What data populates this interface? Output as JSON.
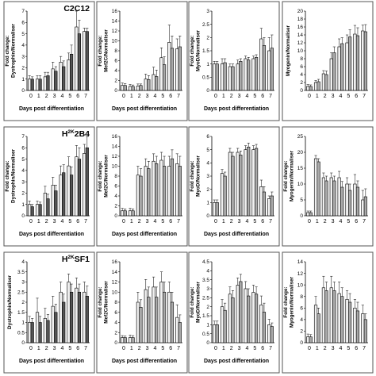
{
  "chart_data": [
    {
      "row": 0,
      "col": 0,
      "type": "bar",
      "title": "C2C12",
      "ylabel": "Fold change: Dystrophin/Normaliser",
      "xlabel": "Days post differentiation",
      "ylim": [
        0,
        7
      ],
      "yticks": [
        0,
        1,
        2,
        3,
        4,
        5,
        6,
        7
      ],
      "categories": [
        "0",
        "1",
        "2",
        "3",
        "4",
        "5",
        "6",
        "7"
      ],
      "series": [
        {
          "values": [
            1.0,
            1.0,
            1.2,
            1.9,
            2.5,
            2.7,
            5.6,
            5.2
          ],
          "errors": [
            0.3,
            0.3,
            0.4,
            0.6,
            0.5,
            0.6,
            1.4,
            0.3
          ],
          "fill": "#f0f0f0"
        },
        {
          "values": [
            1.0,
            1.0,
            1.3,
            1.7,
            2.1,
            3.2,
            5.0,
            5.2
          ],
          "errors": [
            0.2,
            0.3,
            0.3,
            0.4,
            0.5,
            0.8,
            1.2,
            0.3
          ],
          "fill": "#555555"
        }
      ]
    },
    {
      "row": 0,
      "col": 1,
      "type": "bar",
      "title": "",
      "ylabel": "Fold change: Mef2C/Normaliser",
      "xlabel": "Days post differentiation",
      "ylim": [
        0,
        16
      ],
      "yticks": [
        0,
        2,
        4,
        6,
        8,
        10,
        12,
        14,
        16
      ],
      "categories": [
        "0",
        "1",
        "2",
        "3",
        "4",
        "5",
        "6",
        "7"
      ],
      "series": [
        {
          "values": [
            1.0,
            0.8,
            0.9,
            2.3,
            3.2,
            6.6,
            9.7,
            8.4
          ],
          "errors": [
            0.5,
            0.4,
            0.4,
            1.0,
            1.5,
            2.0,
            3.5,
            2.0
          ],
          "fill": "#f0f0f0"
        },
        {
          "values": [
            1.0,
            0.8,
            1.0,
            2.2,
            2.8,
            5.2,
            8.5,
            8.8
          ],
          "errors": [
            0.4,
            0.3,
            0.3,
            0.8,
            1.3,
            1.6,
            2.5,
            2.2
          ],
          "fill": "#aaaaaa"
        }
      ]
    },
    {
      "row": 0,
      "col": 2,
      "type": "bar",
      "title": "",
      "ylabel": "Fold change: MyoD/Normaliser",
      "xlabel": "Days post differentiation",
      "ylim": [
        0,
        3
      ],
      "yticks": [
        0,
        0.5,
        1,
        1.5,
        2,
        2.5,
        3
      ],
      "categories": [
        "0",
        "1",
        "2",
        "3",
        "4",
        "5",
        "6",
        "7"
      ],
      "series": [
        {
          "values": [
            1.0,
            1.0,
            0.9,
            1.0,
            1.2,
            1.2,
            1.95,
            1.5
          ],
          "errors": [
            0.1,
            0.2,
            0.1,
            0.15,
            0.1,
            0.1,
            0.4,
            0.5
          ],
          "fill": "#f0f0f0"
        },
        {
          "values": [
            1.0,
            1.05,
            0.9,
            1.1,
            1.15,
            1.25,
            1.7,
            1.6
          ],
          "errors": [
            0.1,
            0.15,
            0.1,
            0.1,
            0.1,
            0.1,
            0.3,
            0.5
          ],
          "fill": "#aaaaaa"
        }
      ]
    },
    {
      "row": 0,
      "col": 3,
      "type": "bar",
      "title": "",
      "ylabel": "Myogenin/Normaliser",
      "xlabel": "",
      "ylim": [
        0,
        20
      ],
      "yticks": [
        0,
        2,
        4,
        6,
        8,
        10,
        12,
        14,
        16,
        18,
        20
      ],
      "categories": [
        "0",
        "1",
        "2",
        "3",
        "4",
        "5",
        "6",
        "7"
      ],
      "series": [
        {
          "values": [
            1.0,
            2.0,
            4.2,
            8.0,
            11.0,
            12.0,
            14.2,
            15.0
          ],
          "errors": [
            0.5,
            0.5,
            0.8,
            1.5,
            2.0,
            2.0,
            2.2,
            1.5
          ],
          "fill": "#f0f0f0"
        },
        {
          "values": [
            1.0,
            2.2,
            4.0,
            9.5,
            11.8,
            13.5,
            13.8,
            14.8
          ],
          "errors": [
            0.4,
            0.6,
            0.9,
            1.5,
            1.5,
            1.8,
            2.0,
            1.8
          ],
          "fill": "#aaaaaa"
        }
      ]
    },
    {
      "row": 1,
      "col": 0,
      "type": "bar",
      "title": "H2K2B4",
      "title_main": "H",
      "title_sup": "2K",
      "title_rest": "2B4",
      "ylabel": "Fold change: Dystrophin/Normaliser",
      "xlabel": "Days post differentiation",
      "ylim": [
        0,
        7
      ],
      "yticks": [
        0,
        1,
        2,
        3,
        4,
        5,
        6,
        7
      ],
      "categories": [
        "0",
        "1",
        "2",
        "3",
        "4",
        "5",
        "6",
        "7"
      ],
      "series": [
        {
          "values": [
            1.0,
            1.0,
            2.0,
            2.7,
            3.6,
            4.4,
            5.2,
            5.5
          ],
          "errors": [
            0.3,
            0.3,
            0.6,
            0.7,
            0.8,
            0.8,
            1.0,
            0.8
          ],
          "fill": "#f0f0f0"
        },
        {
          "values": [
            0.8,
            1.0,
            1.5,
            2.2,
            3.8,
            3.6,
            5.0,
            6.0
          ],
          "errors": [
            0.2,
            0.2,
            0.4,
            0.5,
            0.7,
            0.7,
            1.0,
            1.2
          ],
          "fill": "#555555"
        }
      ]
    },
    {
      "row": 1,
      "col": 1,
      "type": "bar",
      "title": "",
      "ylabel": "Fold change: Mef2C/Normaliser",
      "xlabel": "Days post differentiation",
      "ylim": [
        0,
        16
      ],
      "yticks": [
        0,
        2,
        4,
        6,
        8,
        10,
        12,
        14,
        16
      ],
      "categories": [
        "0",
        "1",
        "2",
        "3",
        "4",
        "5",
        "6",
        "7"
      ],
      "series": [
        {
          "values": [
            1.0,
            1.0,
            8.2,
            10.0,
            11.0,
            11.2,
            10.0,
            10.5
          ],
          "errors": [
            0.5,
            0.5,
            1.8,
            1.5,
            1.5,
            1.6,
            2.0,
            2.0
          ],
          "fill": "#f0f0f0"
        },
        {
          "values": [
            1.0,
            1.0,
            8.0,
            9.5,
            10.5,
            10.0,
            11.5,
            10.0
          ],
          "errors": [
            0.4,
            0.4,
            1.5,
            1.5,
            1.5,
            2.0,
            1.8,
            2.0
          ],
          "fill": "#aaaaaa"
        }
      ]
    },
    {
      "row": 1,
      "col": 2,
      "type": "bar",
      "title": "",
      "ylabel": "Fold change: MyoD/Normaliser",
      "xlabel": "Days post differentiation",
      "ylim": [
        0,
        6
      ],
      "yticks": [
        0,
        1,
        2,
        3,
        4,
        5,
        6
      ],
      "categories": [
        "0",
        "1",
        "2",
        "3",
        "4",
        "5",
        "6",
        "7"
      ],
      "series": [
        {
          "values": [
            1.0,
            3.2,
            4.8,
            4.8,
            5.0,
            5.0,
            2.2,
            1.3
          ],
          "errors": [
            0.2,
            0.3,
            0.3,
            0.3,
            0.3,
            0.3,
            0.5,
            0.2
          ],
          "fill": "#f0f0f0"
        },
        {
          "values": [
            1.0,
            3.0,
            4.5,
            4.6,
            5.2,
            5.1,
            1.8,
            1.5
          ],
          "errors": [
            0.2,
            0.3,
            0.3,
            0.3,
            0.3,
            0.3,
            0.4,
            0.3
          ],
          "fill": "#aaaaaa"
        }
      ]
    },
    {
      "row": 1,
      "col": 3,
      "type": "bar",
      "title": "",
      "ylabel": "Fold change: Myogenin/Normaliser",
      "xlabel": "",
      "ylim": [
        0,
        25
      ],
      "yticks": [
        0,
        5,
        10,
        15,
        20,
        25
      ],
      "categories": [
        "0",
        "1",
        "2",
        "3",
        "4",
        "5",
        "6",
        "7"
      ],
      "series": [
        {
          "values": [
            1.0,
            18.0,
            12.0,
            12.0,
            12.0,
            10.0,
            10.0,
            5.0
          ],
          "errors": [
            0.5,
            1.0,
            1.5,
            1.5,
            2.0,
            2.0,
            3.0,
            3.0
          ],
          "fill": "#f0f0f0"
        },
        {
          "values": [
            1.0,
            17.0,
            11.0,
            11.0,
            9.0,
            8.0,
            9.0,
            6.0
          ],
          "errors": [
            0.5,
            1.0,
            1.5,
            1.5,
            1.8,
            2.0,
            2.0,
            2.5
          ],
          "fill": "#aaaaaa"
        }
      ]
    },
    {
      "row": 2,
      "col": 0,
      "type": "bar",
      "title": "H2KSF1",
      "title_main": "H",
      "title_sup": "2K",
      "title_rest": "SF1",
      "ylabel": "Dystrophin/Normaliser",
      "xlabel": "Days post differentiation",
      "ylim": [
        0,
        4
      ],
      "yticks": [
        0,
        0.5,
        1,
        1.5,
        2,
        2.5,
        3,
        3.5,
        4
      ],
      "categories": [
        "0",
        "1",
        "2",
        "3",
        "4",
        "5",
        "6",
        "7"
      ],
      "series": [
        {
          "values": [
            1.0,
            1.5,
            1.2,
            1.8,
            2.5,
            3.0,
            2.7,
            2.5
          ],
          "errors": [
            0.3,
            0.7,
            0.5,
            0.5,
            0.5,
            0.4,
            0.5,
            0.5
          ],
          "fill": "#f0f0f0"
        },
        {
          "values": [
            1.0,
            1.0,
            1.1,
            1.5,
            2.0,
            2.5,
            2.5,
            2.3
          ],
          "errors": [
            0.2,
            0.3,
            0.3,
            0.4,
            0.4,
            0.4,
            0.4,
            0.5
          ],
          "fill": "#555555"
        }
      ]
    },
    {
      "row": 2,
      "col": 1,
      "type": "bar",
      "title": "",
      "ylabel": "Fold change: Mef2C/Normaliser",
      "xlabel": "Days post differentiation",
      "ylim": [
        0,
        16
      ],
      "yticks": [
        0,
        2,
        4,
        6,
        8,
        10,
        12,
        14,
        16
      ],
      "categories": [
        "0",
        "1",
        "2",
        "3",
        "4",
        "5",
        "6",
        "7"
      ],
      "series": [
        {
          "values": [
            1.0,
            1.0,
            8.0,
            10.5,
            11.0,
            12.0,
            10.0,
            5.0
          ],
          "errors": [
            0.4,
            0.5,
            2.0,
            2.0,
            2.0,
            2.0,
            2.0,
            2.5
          ],
          "fill": "#f0f0f0"
        },
        {
          "values": [
            1.0,
            1.0,
            7.0,
            9.0,
            9.0,
            10.0,
            8.0,
            4.0
          ],
          "errors": [
            0.3,
            0.4,
            1.5,
            2.0,
            2.0,
            2.0,
            2.0,
            1.5
          ],
          "fill": "#aaaaaa"
        }
      ]
    },
    {
      "row": 2,
      "col": 2,
      "type": "bar",
      "title": "",
      "ylabel": "Fold change: MyoD/Normaliser",
      "xlabel": "Days post differentiation",
      "ylim": [
        0,
        4.5
      ],
      "yticks": [
        0,
        0.5,
        1,
        1.5,
        2,
        2.5,
        3,
        3.5,
        4,
        4.5
      ],
      "categories": [
        "0",
        "1",
        "2",
        "3",
        "4",
        "5",
        "6",
        "7"
      ],
      "series": [
        {
          "values": [
            1.0,
            2.0,
            2.7,
            3.2,
            3.0,
            2.8,
            2.1,
            1.0
          ],
          "errors": [
            0.2,
            0.4,
            0.4,
            0.4,
            0.4,
            0.4,
            0.5,
            0.3
          ],
          "fill": "#f0f0f0"
        },
        {
          "values": [
            1.0,
            1.8,
            2.5,
            3.4,
            2.6,
            2.7,
            1.7,
            0.9
          ],
          "errors": [
            0.2,
            0.4,
            0.4,
            0.4,
            0.4,
            0.4,
            0.5,
            0.2
          ],
          "fill": "#aaaaaa"
        }
      ]
    },
    {
      "row": 2,
      "col": 3,
      "type": "bar",
      "title": "",
      "ylabel": "Fold change: Myogenin/Normaliser",
      "xlabel": "",
      "ylim": [
        0,
        14
      ],
      "yticks": [
        0,
        2,
        4,
        6,
        8,
        10,
        12,
        14
      ],
      "categories": [
        "0",
        "1",
        "2",
        "3",
        "4",
        "5",
        "6",
        "7"
      ],
      "series": [
        {
          "values": [
            1.0,
            6.5,
            9.5,
            9.5,
            8.5,
            7.5,
            6.0,
            5.0
          ],
          "errors": [
            0.5,
            1.5,
            2.0,
            2.0,
            2.0,
            1.5,
            1.5,
            1.5
          ],
          "fill": "#f0f0f0"
        },
        {
          "values": [
            1.0,
            5.0,
            9.0,
            9.0,
            8.0,
            7.0,
            5.5,
            4.0
          ],
          "errors": [
            0.4,
            1.0,
            1.5,
            1.5,
            1.5,
            1.5,
            1.5,
            1.0
          ],
          "fill": "#aaaaaa"
        }
      ]
    }
  ],
  "colors": {
    "frame": "#555555",
    "axis": "#000000",
    "text": "#000000"
  }
}
